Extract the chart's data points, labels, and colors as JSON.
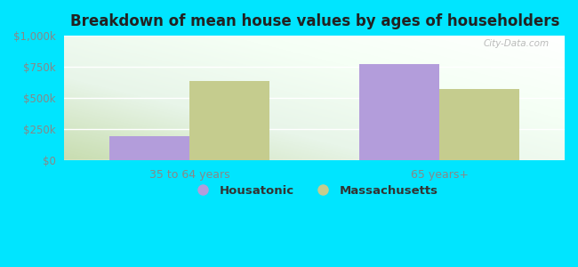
{
  "title": "Breakdown of mean house values by ages of householders",
  "categories": [
    "35 to 64 years",
    "65 years+"
  ],
  "housatonic_values": [
    190000,
    775000
  ],
  "massachusetts_values": [
    635000,
    570000
  ],
  "housatonic_color": "#b39ddb",
  "massachusetts_color": "#c5cc8e",
  "ylim": [
    0,
    1000000
  ],
  "yticks": [
    0,
    250000,
    500000,
    750000,
    1000000
  ],
  "ytick_labels": [
    "$0",
    "$250k",
    "$500k",
    "$750k",
    "$1,000k"
  ],
  "outer_background": "#00e5ff",
  "bar_width": 0.32,
  "legend_labels": [
    "Housatonic",
    "Massachusetts"
  ],
  "watermark": "City-Data.com",
  "tick_color": "#888888",
  "grid_color": "#ffffff",
  "title_color": "#222222"
}
